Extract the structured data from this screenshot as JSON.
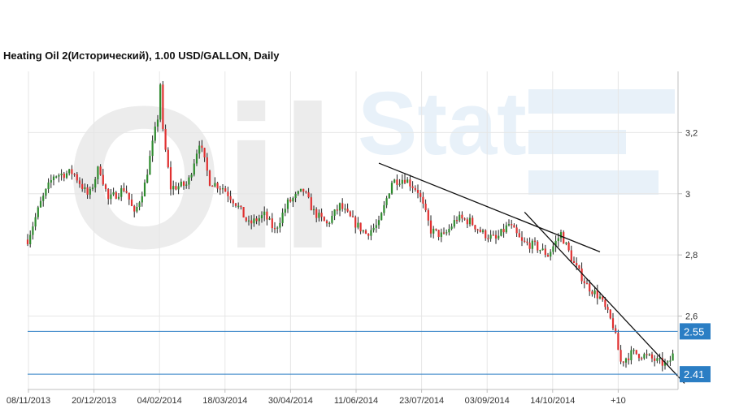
{
  "title": "Heating Oil 2(Исторический), 1.00 USD/GALLON, Daily",
  "watermark": "OilStat",
  "colors": {
    "up": "#2e8b2e",
    "down": "#e03030",
    "wick": "#222222",
    "level": "#2b7ec4",
    "label_bg": "#2b7ec4",
    "grid": "#e6e6e6",
    "axis": "#bfbfbf",
    "watermark_gray": "#ececec",
    "watermark_blue": "#e8f1f9"
  },
  "chart_data": {
    "type": "candlestick",
    "ylim": [
      2.36,
      3.4
    ],
    "y_ticks": [
      {
        "value": 2.6,
        "label": "2,6"
      },
      {
        "value": 2.8,
        "label": "2,8"
      },
      {
        "value": 3.0,
        "label": "3"
      },
      {
        "value": 3.2,
        "label": "3,2"
      }
    ],
    "x_labels": [
      "08/11/2013",
      "20/12/2013",
      "04/02/2014",
      "18/03/2014",
      "30/04/2014",
      "11/06/2014",
      "23/07/2014",
      "03/09/2014",
      "14/10/2014",
      "+10"
    ],
    "close_path": [
      [
        0,
        2.85
      ],
      [
        10,
        2.97
      ],
      [
        20,
        3.06
      ],
      [
        35,
        3.07
      ],
      [
        47,
        2.99
      ],
      [
        55,
        3.09
      ],
      [
        62,
        2.98
      ],
      [
        75,
        3.02
      ],
      [
        82,
        2.93
      ],
      [
        90,
        3.03
      ],
      [
        100,
        3.25
      ],
      [
        102,
        3.36
      ],
      [
        104,
        3.2
      ],
      [
        110,
        3.02
      ],
      [
        123,
        3.03
      ],
      [
        132,
        3.17
      ],
      [
        140,
        3.04
      ],
      [
        150,
        3.02
      ],
      [
        160,
        2.97
      ],
      [
        170,
        2.9
      ],
      [
        182,
        2.93
      ],
      [
        190,
        2.88
      ],
      [
        200,
        2.97
      ],
      [
        212,
        3.01
      ],
      [
        220,
        2.94
      ],
      [
        230,
        2.9
      ],
      [
        240,
        2.96
      ],
      [
        250,
        2.91
      ],
      [
        260,
        2.87
      ],
      [
        270,
        2.9
      ],
      [
        280,
        3.04
      ],
      [
        290,
        3.05
      ],
      [
        300,
        3.01
      ],
      [
        310,
        2.88
      ],
      [
        320,
        2.86
      ],
      [
        330,
        2.92
      ],
      [
        340,
        2.91
      ],
      [
        350,
        2.87
      ],
      [
        360,
        2.85
      ],
      [
        370,
        2.9
      ],
      [
        380,
        2.84
      ],
      [
        390,
        2.83
      ],
      [
        400,
        2.8
      ],
      [
        410,
        2.87
      ],
      [
        420,
        2.77
      ],
      [
        430,
        2.7
      ],
      [
        440,
        2.66
      ],
      [
        450,
        2.57
      ],
      [
        456,
        2.45
      ],
      [
        465,
        2.48
      ],
      [
        475,
        2.47
      ],
      [
        485,
        2.45
      ],
      [
        492,
        2.44
      ],
      [
        497,
        2.48
      ]
    ],
    "trendlines": [
      {
        "points": [
          [
            270,
            3.1
          ],
          [
            440,
            2.81
          ]
        ]
      },
      {
        "points": [
          [
            382,
            2.94
          ],
          [
            505,
            2.38
          ]
        ]
      }
    ],
    "levels": [
      {
        "value": 2.55,
        "label": "2.55"
      },
      {
        "value": 2.41,
        "label": "2.41"
      }
    ]
  }
}
